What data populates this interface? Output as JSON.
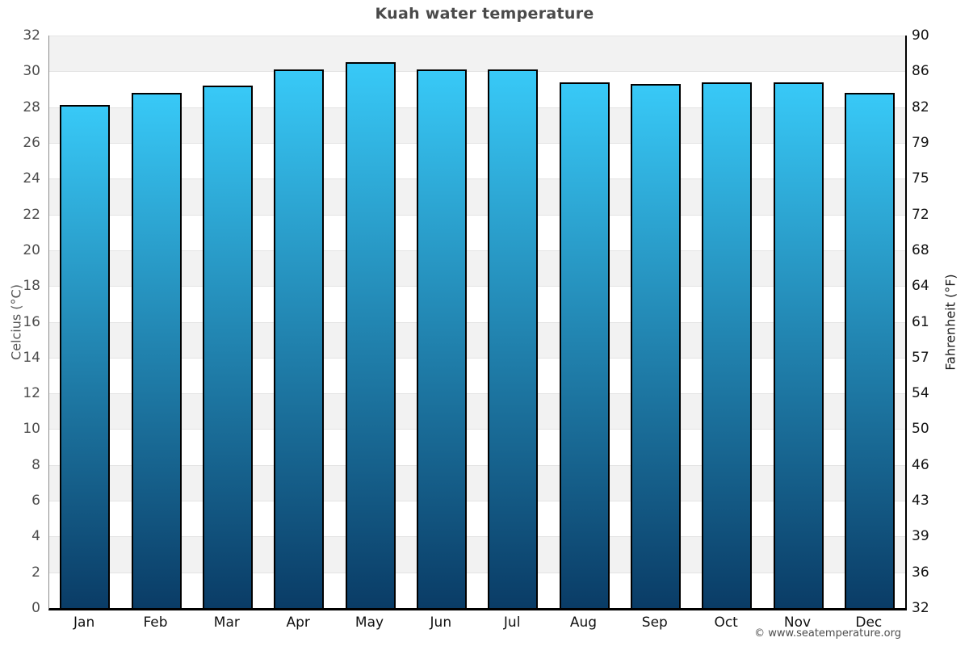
{
  "title": "Kuah water temperature",
  "footer": {
    "credit": "© www.seatemperature.org"
  },
  "chart_data": {
    "type": "bar",
    "title": "Kuah water temperature",
    "categories": [
      "Jan",
      "Feb",
      "Mar",
      "Apr",
      "May",
      "Jun",
      "Jul",
      "Aug",
      "Sep",
      "Oct",
      "Nov",
      "Dec"
    ],
    "values": [
      28.1,
      28.8,
      29.2,
      30.1,
      30.5,
      30.1,
      30.1,
      29.4,
      29.3,
      29.4,
      29.4,
      28.8
    ],
    "unit": "°C",
    "xlabel": "",
    "ylabel_left": "Celcius (°C)",
    "ylabel_right": "Fahrenheit (°F)",
    "ylim": [
      0,
      32
    ],
    "yticks_celsius": [
      "32",
      "30",
      "28",
      "26",
      "24",
      "22",
      "20",
      "18",
      "16",
      "14",
      "12",
      "10",
      "8",
      "6",
      "4",
      "2",
      "0"
    ],
    "yticks_fahrenheit": [
      "90",
      "86",
      "82",
      "79",
      "75",
      "72",
      "68",
      "64",
      "61",
      "57",
      "54",
      "50",
      "46",
      "43",
      "39",
      "36",
      "32"
    ],
    "grid": "horizontal-alternating-bands",
    "legend": "none",
    "colors": {
      "bar_gradient_top": "#38c9f7",
      "bar_gradient_bottom": "#0a3c66",
      "bar_border": "#000000",
      "band_gray": "#f2f2f2",
      "band_white": "#ffffff",
      "gridline": "#e4e4e4",
      "title_text": "#4a4a4a",
      "left_axis_text": "#4d4d4d",
      "right_axis_text": "#111111"
    }
  }
}
